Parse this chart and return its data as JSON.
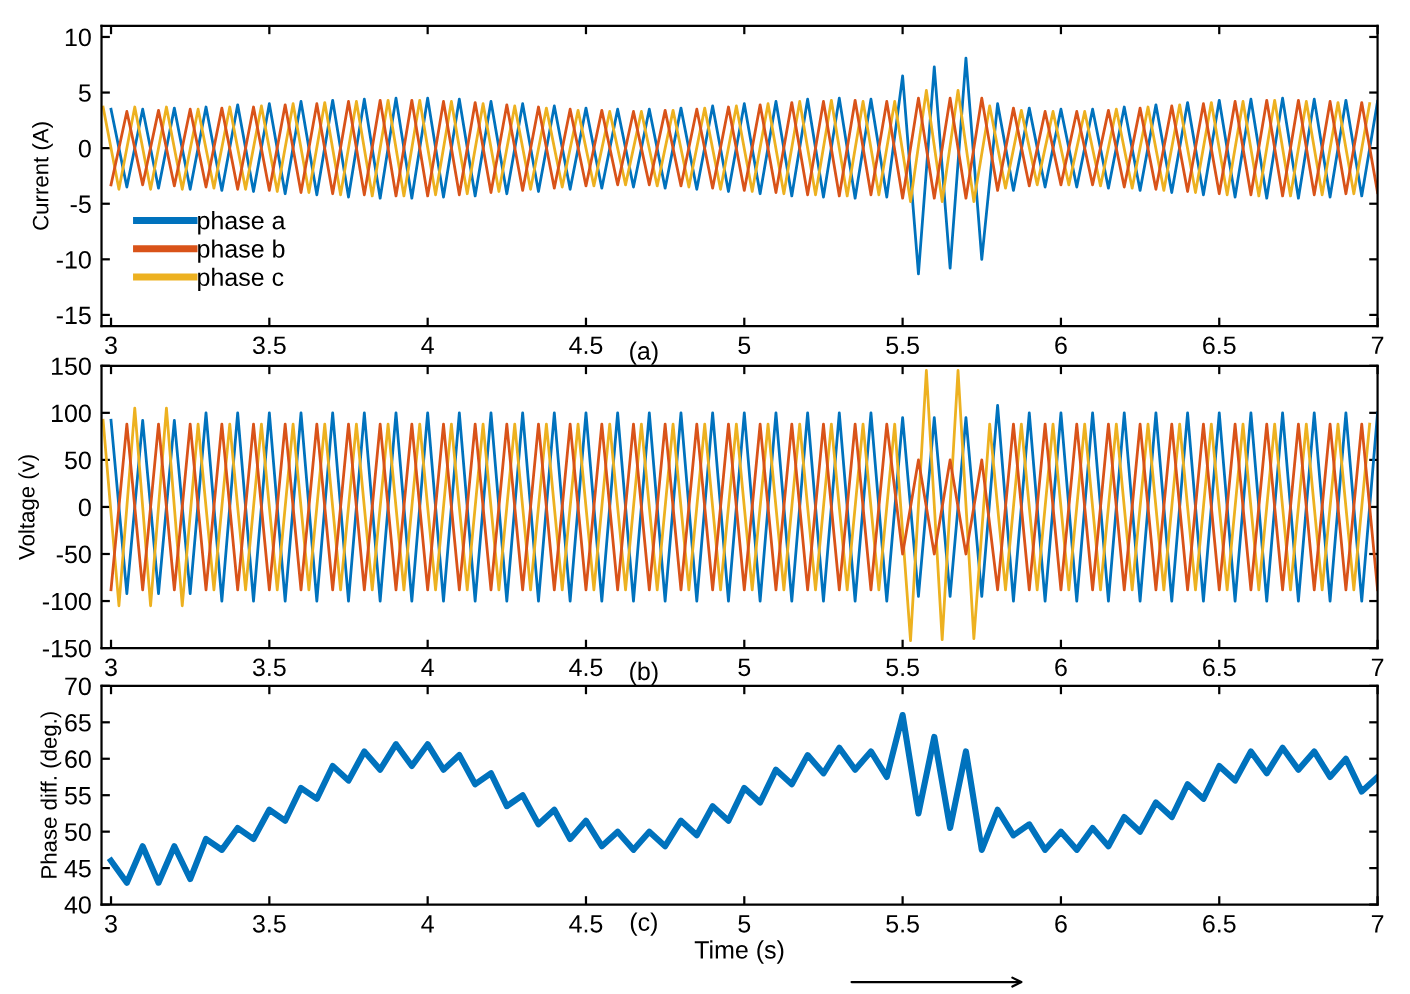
{
  "chart_data": [
    {
      "type": "line",
      "ylabel": "Current (A)",
      "annotations": [
        "(a)"
      ],
      "legend": "bottom left",
      "grid": false,
      "x": [
        3,
        3.05,
        3.1,
        3.15,
        3.2,
        3.25,
        3.3,
        3.35,
        3.4,
        3.45,
        3.5,
        3.55,
        3.6,
        3.65,
        3.7,
        3.75,
        3.8,
        3.85,
        3.9,
        3.95,
        4,
        4.05,
        4.1,
        4.15,
        4.2,
        4.25,
        4.3,
        4.35,
        4.4,
        4.45,
        4.5,
        4.55,
        4.6,
        4.65,
        4.7,
        4.75,
        4.8,
        4.85,
        4.9,
        4.95,
        5,
        5.05,
        5.1,
        5.15,
        5.2,
        5.25,
        5.3,
        5.35,
        5.4,
        5.45,
        5.5,
        5.55,
        5.6,
        5.65,
        5.7,
        5.75,
        5.8,
        5.85,
        5.9,
        5.95,
        6,
        6.05,
        6.1,
        6.15,
        6.2,
        6.25,
        6.3,
        6.35,
        6.4,
        6.45,
        6.5,
        6.55,
        6.6,
        6.65,
        6.7,
        6.75,
        6.8,
        6.85,
        6.9,
        6.95,
        7
      ],
      "xlim": [
        2.97,
        7
      ],
      "xticks": [
        3,
        3.5,
        4,
        4.5,
        5,
        5.5,
        6,
        6.5,
        7
      ],
      "ylim": [
        -16,
        11
      ],
      "yticks": [
        -15,
        -10,
        -5,
        0,
        5,
        10
      ],
      "series": [
        {
          "name": "phase a",
          "color": "#0072bd",
          "values": [
            3.5,
            -3.5,
            3.5,
            -3.6,
            3.6,
            -3.7,
            3.7,
            -3.8,
            3.9,
            -3.9,
            4.0,
            -4.1,
            4.2,
            -4.2,
            4.3,
            -4.4,
            4.4,
            -4.5,
            4.5,
            -4.5,
            4.5,
            -4.4,
            4.4,
            -4.3,
            4.2,
            -4.1,
            4.0,
            -3.9,
            3.8,
            -3.7,
            3.6,
            -3.6,
            3.5,
            -3.5,
            3.5,
            -3.6,
            3.6,
            -3.7,
            3.8,
            -3.9,
            4.0,
            -4.1,
            4.2,
            -4.3,
            4.4,
            -4.4,
            4.5,
            -4.5,
            4.4,
            -4.4,
            6.5,
            -11.3,
            7.3,
            -10.8,
            8.1,
            -10.0,
            4.0,
            -3.8,
            3.6,
            -3.5,
            3.5,
            -3.5,
            3.5,
            -3.6,
            3.7,
            -3.8,
            3.9,
            -4.0,
            4.1,
            -4.2,
            4.3,
            -4.4,
            4.4,
            -4.5,
            4.5,
            -4.5,
            4.4,
            -4.4,
            4.3,
            -4.3,
            4.2
          ]
        },
        {
          "name": "phase b",
          "color": "#d95319",
          "values": [
            -3.3,
            3.3,
            -3.3,
            3.4,
            -3.4,
            3.5,
            -3.5,
            3.6,
            -3.7,
            3.7,
            -3.8,
            3.9,
            -4.0,
            4.0,
            -4.1,
            4.2,
            -4.2,
            4.3,
            -4.3,
            4.3,
            -4.3,
            4.2,
            -4.2,
            4.1,
            -4.0,
            3.9,
            -3.8,
            3.7,
            -3.6,
            3.5,
            -3.4,
            3.4,
            -3.3,
            3.3,
            -3.3,
            3.4,
            -3.4,
            3.5,
            -3.6,
            3.7,
            -3.8,
            3.9,
            -4.0,
            4.1,
            -4.2,
            4.2,
            -4.3,
            4.3,
            -4.2,
            4.2,
            -4.5,
            4.5,
            -4.5,
            4.5,
            -4.5,
            4.5,
            -3.8,
            3.6,
            -3.4,
            3.3,
            -3.3,
            3.3,
            -3.3,
            3.4,
            -3.5,
            3.6,
            -3.7,
            3.8,
            -3.9,
            4.0,
            -4.1,
            4.2,
            -4.2,
            4.3,
            -4.3,
            4.3,
            -4.2,
            4.2,
            -4.1,
            4.1,
            -4.0
          ]
        },
        {
          "name": "phase c",
          "color": "#edb120",
          "x": [
            2.975,
            3.025,
            3.075,
            3.125,
            3.175,
            3.225,
            3.275,
            3.325,
            3.375,
            3.425,
            3.475,
            3.525,
            3.575,
            3.625,
            3.675,
            3.725,
            3.775,
            3.825,
            3.875,
            3.925,
            3.975,
            4.025,
            4.075,
            4.125,
            4.175,
            4.225,
            4.275,
            4.325,
            4.375,
            4.425,
            4.475,
            4.525,
            4.575,
            4.625,
            4.675,
            4.725,
            4.775,
            4.825,
            4.875,
            4.925,
            4.975,
            5.025,
            5.075,
            5.125,
            5.175,
            5.225,
            5.275,
            5.325,
            5.375,
            5.425,
            5.475,
            5.525,
            5.575,
            5.625,
            5.675,
            5.725,
            5.775,
            5.825,
            5.875,
            5.925,
            5.975,
            6.025,
            6.075,
            6.125,
            6.175,
            6.225,
            6.275,
            6.325,
            6.375,
            6.425,
            6.475,
            6.525,
            6.575,
            6.625,
            6.675,
            6.725,
            6.775,
            6.825,
            6.875,
            6.925,
            6.975
          ],
          "values": [
            3.7,
            -3.7,
            3.7,
            -3.7,
            3.7,
            -3.7,
            3.5,
            -3.6,
            3.7,
            -3.7,
            3.8,
            -3.9,
            4.0,
            -4.0,
            4.1,
            -4.2,
            4.2,
            -4.3,
            4.3,
            -4.3,
            4.3,
            -4.2,
            4.2,
            -4.1,
            4.0,
            -3.9,
            3.8,
            -3.7,
            3.6,
            -3.5,
            3.4,
            -3.4,
            3.3,
            -3.3,
            3.3,
            -3.4,
            3.4,
            -3.5,
            3.6,
            -3.7,
            3.8,
            -3.9,
            4.0,
            -4.1,
            4.2,
            -4.2,
            4.3,
            -4.3,
            4.2,
            -4.2,
            4.2,
            -4.8,
            5.2,
            -4.8,
            5.2,
            -4.8,
            3.8,
            -3.6,
            3.4,
            -3.3,
            3.3,
            -3.3,
            3.3,
            -3.4,
            3.5,
            -3.6,
            3.7,
            -3.8,
            3.9,
            -4.0,
            4.1,
            -4.2,
            4.2,
            -4.3,
            4.3,
            -4.3,
            4.2,
            -4.2,
            4.1,
            -4.1,
            4.0
          ]
        }
      ]
    },
    {
      "type": "line",
      "ylabel": "Voltage (v)",
      "annotations": [
        "(b)"
      ],
      "grid": false,
      "x": [
        3,
        3.05,
        3.1,
        3.15,
        3.2,
        3.25,
        3.3,
        3.35,
        3.4,
        3.45,
        3.5,
        3.55,
        3.6,
        3.65,
        3.7,
        3.75,
        3.8,
        3.85,
        3.9,
        3.95,
        4,
        4.05,
        4.1,
        4.15,
        4.2,
        4.25,
        4.3,
        4.35,
        4.4,
        4.45,
        4.5,
        4.55,
        4.6,
        4.65,
        4.7,
        4.75,
        4.8,
        4.85,
        4.9,
        4.95,
        5,
        5.05,
        5.1,
        5.15,
        5.2,
        5.25,
        5.3,
        5.35,
        5.4,
        5.45,
        5.5,
        5.55,
        5.6,
        5.65,
        5.7,
        5.75,
        5.8,
        5.85,
        5.9,
        5.95,
        6,
        6.05,
        6.1,
        6.15,
        6.2,
        6.25,
        6.3,
        6.35,
        6.4,
        6.45,
        6.5,
        6.55,
        6.6,
        6.65,
        6.7,
        6.75,
        6.8,
        6.85,
        6.9,
        6.95,
        7
      ],
      "xlim": [
        2.97,
        7
      ],
      "xticks": [
        3,
        3.5,
        4,
        4.5,
        5,
        5.5,
        6,
        6.5,
        7
      ],
      "ylim": [
        -150,
        150
      ],
      "yticks": [
        -150,
        -100,
        -50,
        0,
        50,
        100,
        150
      ],
      "series": [
        {
          "color": "#0072bd",
          "values": [
            92,
            -92,
            92,
            -92,
            92,
            -92,
            100,
            -100,
            100,
            -100,
            100,
            -100,
            100,
            -100,
            100,
            -100,
            100,
            -100,
            100,
            -100,
            100,
            -100,
            100,
            -100,
            100,
            -100,
            100,
            -100,
            100,
            -100,
            100,
            -100,
            100,
            -100,
            100,
            -100,
            100,
            -100,
            100,
            -100,
            100,
            -100,
            100,
            -100,
            100,
            -100,
            100,
            -100,
            100,
            -100,
            95,
            -95,
            95,
            -95,
            95,
            -95,
            108,
            -100,
            100,
            -100,
            100,
            -100,
            100,
            -100,
            100,
            -100,
            100,
            -100,
            100,
            -100,
            100,
            -100,
            100,
            -100,
            100,
            -100,
            100,
            -100,
            100,
            -100,
            100
          ]
        },
        {
          "color": "#d95319",
          "values": [
            -88,
            88,
            -88,
            88,
            -88,
            88,
            -88,
            88,
            -88,
            88,
            -88,
            88,
            -88,
            88,
            -88,
            88,
            -88,
            88,
            -88,
            88,
            -88,
            88,
            -88,
            88,
            -88,
            88,
            -88,
            88,
            -88,
            88,
            -88,
            88,
            -88,
            88,
            -88,
            88,
            -88,
            88,
            -88,
            88,
            -88,
            88,
            -88,
            88,
            -88,
            88,
            -88,
            88,
            -88,
            88,
            -50,
            50,
            -50,
            50,
            -50,
            50,
            -88,
            88,
            -88,
            88,
            -88,
            88,
            -88,
            88,
            -88,
            88,
            -88,
            88,
            -88,
            88,
            -88,
            88,
            -88,
            88,
            -88,
            88,
            -88,
            88,
            -88,
            88,
            -88
          ]
        },
        {
          "color": "#edb120",
          "x": [
            2.975,
            3.025,
            3.075,
            3.125,
            3.175,
            3.225,
            3.275,
            3.325,
            3.375,
            3.425,
            3.475,
            3.525,
            3.575,
            3.625,
            3.675,
            3.725,
            3.775,
            3.825,
            3.875,
            3.925,
            3.975,
            4.025,
            4.075,
            4.125,
            4.175,
            4.225,
            4.275,
            4.325,
            4.375,
            4.425,
            4.475,
            4.525,
            4.575,
            4.625,
            4.675,
            4.725,
            4.775,
            4.825,
            4.875,
            4.925,
            4.975,
            5.025,
            5.075,
            5.125,
            5.175,
            5.225,
            5.275,
            5.325,
            5.375,
            5.425,
            5.475,
            5.525,
            5.575,
            5.625,
            5.675,
            5.725,
            5.775,
            5.825,
            5.875,
            5.925,
            5.975,
            6.025,
            6.075,
            6.125,
            6.175,
            6.225,
            6.275,
            6.325,
            6.375,
            6.425,
            6.475,
            6.525,
            6.575,
            6.625,
            6.675,
            6.725,
            6.775,
            6.825,
            6.875,
            6.925,
            6.975
          ],
          "values": [
            92,
            -105,
            105,
            -105,
            105,
            -105,
            88,
            -88,
            88,
            -88,
            88,
            -88,
            88,
            -88,
            88,
            -88,
            88,
            -88,
            88,
            -88,
            88,
            -88,
            88,
            -88,
            88,
            -88,
            88,
            -88,
            88,
            -88,
            88,
            -88,
            88,
            -88,
            88,
            -88,
            88,
            -88,
            88,
            -88,
            88,
            -88,
            88,
            -88,
            88,
            -88,
            88,
            -88,
            88,
            -88,
            88,
            -142,
            145,
            -141,
            145,
            -140,
            88,
            -88,
            88,
            -88,
            88,
            -88,
            88,
            -88,
            88,
            -88,
            88,
            -88,
            88,
            -88,
            88,
            -88,
            88,
            -88,
            88,
            -88,
            88,
            -88,
            88,
            -88,
            88
          ]
        }
      ]
    },
    {
      "type": "line",
      "ylabel": "Phase diff. (deg.)",
      "xlabel": "Time (s)",
      "annotations": [
        "(c)"
      ],
      "grid": false,
      "x": [
        3,
        3.05,
        3.1,
        3.15,
        3.2,
        3.25,
        3.3,
        3.35,
        3.4,
        3.45,
        3.5,
        3.55,
        3.6,
        3.65,
        3.7,
        3.75,
        3.8,
        3.85,
        3.9,
        3.95,
        4,
        4.05,
        4.1,
        4.15,
        4.2,
        4.25,
        4.3,
        4.35,
        4.4,
        4.45,
        4.5,
        4.55,
        4.6,
        4.65,
        4.7,
        4.75,
        4.8,
        4.85,
        4.9,
        4.95,
        5,
        5.05,
        5.1,
        5.15,
        5.2,
        5.25,
        5.3,
        5.35,
        5.4,
        5.45,
        5.5,
        5.55,
        5.6,
        5.65,
        5.7,
        5.75,
        5.8,
        5.85,
        5.9,
        5.95,
        6,
        6.05,
        6.1,
        6.15,
        6.2,
        6.25,
        6.3,
        6.35,
        6.4,
        6.45,
        6.5,
        6.55,
        6.6,
        6.65,
        6.7,
        6.75,
        6.8,
        6.85,
        6.9,
        6.95,
        7
      ],
      "xlim": [
        2.97,
        7
      ],
      "xticks": [
        3,
        3.5,
        4,
        4.5,
        5,
        5.5,
        6,
        6.5,
        7
      ],
      "ylim": [
        40,
        70
      ],
      "yticks": [
        40,
        45,
        50,
        55,
        60,
        65,
        70
      ],
      "series": [
        {
          "color": "#0072bd",
          "values": [
            46,
            43,
            48,
            43,
            48,
            43.5,
            49,
            47.5,
            50.5,
            49,
            53,
            51.5,
            56,
            54.5,
            59,
            57,
            61,
            58.5,
            62,
            59,
            62,
            58.5,
            60.5,
            56.5,
            58,
            53.5,
            55,
            51,
            53,
            49,
            51.5,
            48,
            50,
            47.5,
            50,
            48,
            51.5,
            49.5,
            53.5,
            51.5,
            56,
            54,
            58.5,
            56.5,
            60.5,
            58,
            61.5,
            58.5,
            61,
            57.5,
            66,
            52.5,
            63,
            50.5,
            61,
            47.5,
            53,
            49.5,
            51,
            47.5,
            50,
            47.5,
            50.5,
            48,
            52,
            50,
            54,
            52,
            56.5,
            54.5,
            59,
            57,
            61,
            58,
            61.5,
            58.5,
            61,
            57.5,
            60,
            55.5,
            57.5
          ]
        }
      ]
    }
  ]
}
